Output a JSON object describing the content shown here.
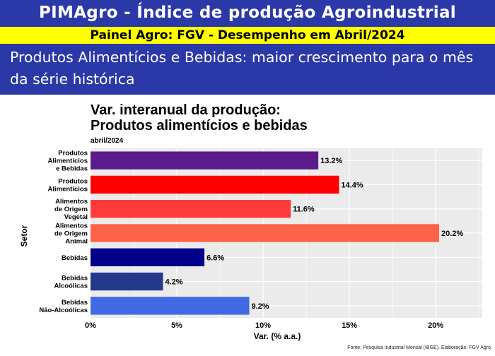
{
  "header": {
    "title": "PIMAgro - Índice de produção Agroindustrial",
    "subtitle": "Painel Agro: FGV - Desempenho em Abril/2024",
    "headline": "Produtos Alimentícios e Bebidas: maior crescimento para o mês da série histórica"
  },
  "chart_data": {
    "type": "bar",
    "orientation": "horizontal",
    "title_lines": [
      "Var. interanual da produção:",
      "Produtos alimentícios e bebidas"
    ],
    "subtitle": "abril/2024",
    "categories": [
      "Produtos Alimentícios e Bebidas",
      "Produtos Alimentícios",
      "Alimentos de Origem Vegetal",
      "Alimentos de Origem Animal",
      "Bebidas",
      "Bebidas Alcoólicas",
      "Bebidas Não-Alcoólicas"
    ],
    "category_label_lines": [
      [
        "Produtos",
        "Alimentícios",
        "e Bebidas"
      ],
      [
        "Produtos",
        "Alimentícios"
      ],
      [
        "Alimentos",
        "de Origem",
        "Vegetal"
      ],
      [
        "Alimentos",
        "de Origem",
        "Animal"
      ],
      [
        "Bebidas"
      ],
      [
        "Bebidas",
        "Alcoólicas"
      ],
      [
        "Bebidas",
        "Não-Alcoólicas"
      ]
    ],
    "values": [
      13.2,
      14.4,
      11.6,
      20.2,
      6.6,
      4.2,
      9.2
    ],
    "value_labels": [
      "13.2%",
      "14.4%",
      "11.6%",
      "20.2%",
      "6.6%",
      "4.2%",
      "9.2%"
    ],
    "bar_colors": [
      "#5c1b8a",
      "#ff0000",
      "#ff3a3a",
      "#ff6347",
      "#00008b",
      "#233a8a",
      "#4169e1"
    ],
    "xlabel": "Var. (% a.a.)",
    "ylabel": "Setor",
    "xlim": [
      0,
      22.7
    ],
    "xticks": [
      0,
      5,
      10,
      15,
      20
    ],
    "xtick_labels": [
      "0%",
      "5%",
      "10%",
      "15%",
      "20%"
    ],
    "grid": true,
    "panel_background": "#ebebeb",
    "caption": "Fonte: Pesquisa Industrial Mensal (IBGE). Elaboração: FGV Agro"
  }
}
